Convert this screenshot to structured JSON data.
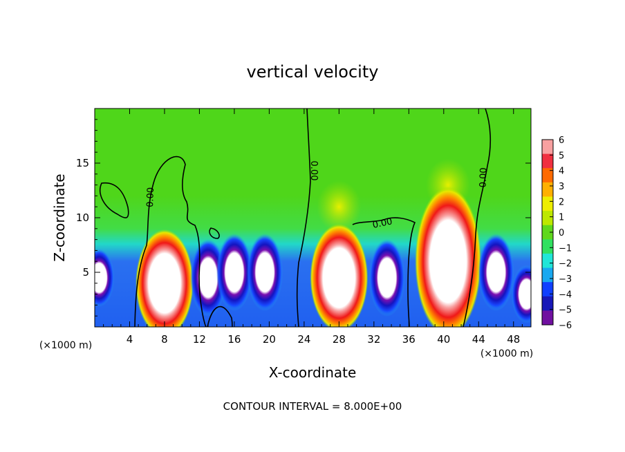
{
  "chart_data": {
    "type": "heatmap",
    "title": "vertical velocity",
    "xlabel": "X-coordinate",
    "ylabel": "Z-coordinate",
    "x_unit_left": "(×1000 m)",
    "x_unit_right": "(×1000 m)",
    "xlim": [
      0,
      50
    ],
    "ylim": [
      0,
      20
    ],
    "x_ticks": [
      "4",
      "8",
      "12",
      "16",
      "20",
      "24",
      "28",
      "32",
      "36",
      "40",
      "44",
      "48"
    ],
    "y_ticks": [
      "5",
      "10",
      "15"
    ],
    "colorbar": {
      "ticks": [
        "6",
        "5",
        "4",
        "3",
        "2",
        "1",
        "0",
        "−1",
        "−2",
        "−3",
        "−4",
        "−5",
        "−6"
      ],
      "colors": [
        "#f8a0a0",
        "#f03040",
        "#ff6a00",
        "#ffb000",
        "#eeee00",
        "#bde800",
        "#5fd81c",
        "#30e060",
        "#20e6d8",
        "#18a8f0",
        "#1040ff",
        "#1818b8",
        "#7010a0"
      ]
    },
    "contour_labels": [
      "0.00",
      "0.00",
      "0.00",
      "0.00"
    ],
    "footer": "CONTOUR INTERVAL = 8.000E+00",
    "features": [
      {
        "sign": "-",
        "x": 0.5,
        "z": 4.5
      },
      {
        "sign": "+",
        "x": 8,
        "z": 4
      },
      {
        "sign": "-",
        "x": 13,
        "z": 4.5
      },
      {
        "sign": "-",
        "x": 16,
        "z": 5
      },
      {
        "sign": "-",
        "x": 19.5,
        "z": 5
      },
      {
        "sign": "+",
        "x": 28,
        "z": 4.5
      },
      {
        "sign": "-",
        "x": 33.5,
        "z": 4.5
      },
      {
        "sign": "+",
        "x": 40.5,
        "z": 6
      },
      {
        "sign": "-",
        "x": 46,
        "z": 5
      },
      {
        "sign": "-",
        "x": 49.5,
        "z": 3
      }
    ]
  }
}
